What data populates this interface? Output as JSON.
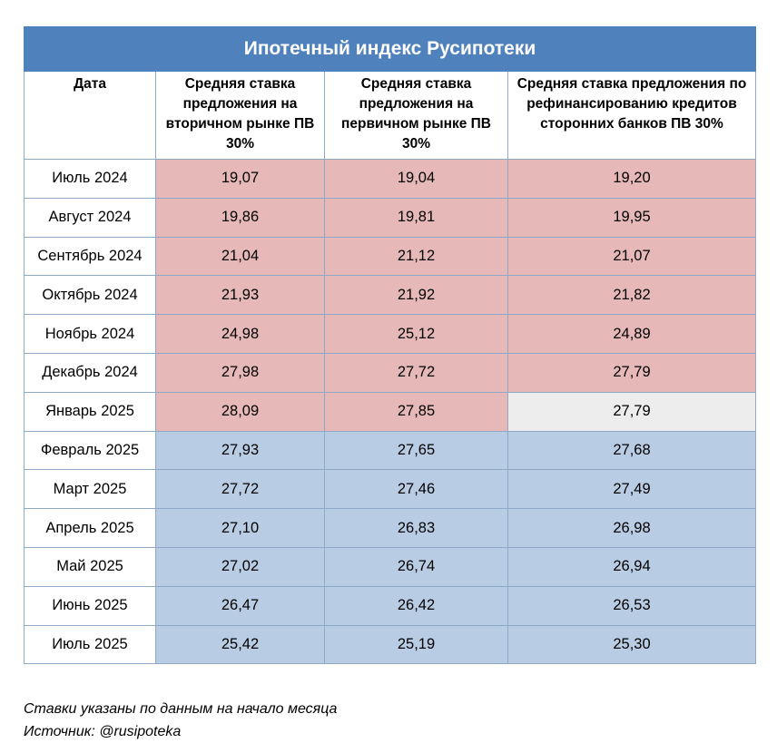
{
  "title": "Ипотечный индекс Русипотеки",
  "headers": [
    "Дата",
    "Средняя ставка предложения на вторичном рынке ПВ 30%",
    "Средняя ставка предложения на первичном рынке ПВ 30%",
    "Средняя ставка предложения по рефинансированию кредитов сторонних банков ПВ 30%"
  ],
  "colors": {
    "title_bg": "#4f81bd",
    "pink": "#e6b8b7",
    "blue": "#b8cce4",
    "grey": "#ededed"
  },
  "rows": [
    {
      "date": "Июль 2024",
      "secondary": "19,07",
      "primary": "19,04",
      "refinance": "19,20",
      "tone": [
        "pink",
        "pink",
        "pink"
      ]
    },
    {
      "date": "Август 2024",
      "secondary": "19,86",
      "primary": "19,81",
      "refinance": "19,95",
      "tone": [
        "pink",
        "pink",
        "pink"
      ]
    },
    {
      "date": "Сентябрь 2024",
      "secondary": "21,04",
      "primary": "21,12",
      "refinance": "21,07",
      "tone": [
        "pink",
        "pink",
        "pink"
      ]
    },
    {
      "date": "Октябрь 2024",
      "secondary": "21,93",
      "primary": "21,92",
      "refinance": "21,82",
      "tone": [
        "pink",
        "pink",
        "pink"
      ]
    },
    {
      "date": "Ноябрь 2024",
      "secondary": "24,98",
      "primary": "25,12",
      "refinance": "24,89",
      "tone": [
        "pink",
        "pink",
        "pink"
      ]
    },
    {
      "date": "Декабрь 2024",
      "secondary": "27,98",
      "primary": "27,72",
      "refinance": "27,79",
      "tone": [
        "pink",
        "pink",
        "pink"
      ]
    },
    {
      "date": "Январь 2025",
      "secondary": "28,09",
      "primary": "27,85",
      "refinance": "27,79",
      "tone": [
        "pink",
        "pink",
        "grey"
      ]
    },
    {
      "date": "Февраль 2025",
      "secondary": "27,93",
      "primary": "27,65",
      "refinance": "27,68",
      "tone": [
        "blue",
        "blue",
        "blue"
      ]
    },
    {
      "date": "Март 2025",
      "secondary": "27,72",
      "primary": "27,46",
      "refinance": "27,49",
      "tone": [
        "blue",
        "blue",
        "blue"
      ]
    },
    {
      "date": "Апрель 2025",
      "secondary": "27,10",
      "primary": "26,83",
      "refinance": "26,98",
      "tone": [
        "blue",
        "blue",
        "blue"
      ]
    },
    {
      "date": "Май 2025",
      "secondary": "27,02",
      "primary": "26,74",
      "refinance": "26,94",
      "tone": [
        "blue",
        "blue",
        "blue"
      ]
    },
    {
      "date": "Июнь 2025",
      "secondary": "26,47",
      "primary": "26,42",
      "refinance": "26,53",
      "tone": [
        "blue",
        "blue",
        "blue"
      ]
    },
    {
      "date": "Июль 2025",
      "secondary": "25,42",
      "primary": "25,19",
      "refinance": "25,30",
      "tone": [
        "blue",
        "blue",
        "blue"
      ]
    }
  ],
  "notes": {
    "line1": "Ставки указаны по данным на начало месяца",
    "line2": "Источник: @rusipoteka"
  }
}
